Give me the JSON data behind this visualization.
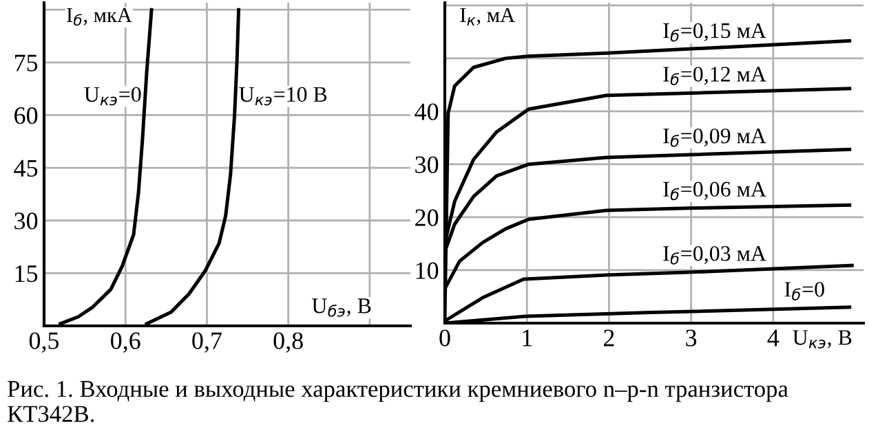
{
  "chart_data": [
    {
      "type": "line",
      "xlabel": "U$_{бэ}$, В",
      "ylabel": "I$_{б}$, мкА",
      "xlim": [
        0.5,
        0.95
      ],
      "ylim": [
        0,
        92
      ],
      "xticks": [
        {
          "value": 0.5,
          "label": "0,5"
        },
        {
          "value": 0.6,
          "label": "0,6"
        },
        {
          "value": 0.7,
          "label": "0,7"
        },
        {
          "value": 0.8,
          "label": "0,8"
        },
        {
          "value": 0.9,
          "label": null
        }
      ],
      "yticks": [
        15,
        30,
        45,
        60,
        75,
        {
          "value": 90,
          "label": null
        }
      ],
      "grid": true,
      "legend": false,
      "series": [
        {
          "name": "U$_{кэ}$=0",
          "color": "#000000",
          "x": [
            0.52,
            0.542,
            0.559,
            0.582,
            0.596,
            0.61,
            0.616,
            0.621,
            0.626,
            0.632
          ],
          "values": [
            0.6,
            2.6,
            5.2,
            10.4,
            17,
            26,
            38,
            53.5,
            72,
            90
          ]
        },
        {
          "name": "U$_{кэ}$=10 В",
          "color": "#000000",
          "x": [
            0.626,
            0.656,
            0.678,
            0.698,
            0.715,
            0.723,
            0.729,
            0.734,
            0.737,
            0.739
          ],
          "values": [
            0.6,
            3.9,
            9.1,
            15.7,
            23.5,
            31.3,
            43,
            60,
            75.7,
            90
          ]
        }
      ],
      "annotations": [
        "Рис. 1. Входные и выходные характеристики кремниевого n–p-n транзистора КТ342В."
      ]
    },
    {
      "type": "line",
      "xlabel": "U$_{кэ}$, В",
      "ylabel": "I$_{к}$, мА",
      "xlim": [
        0,
        5.1
      ],
      "ylim": [
        0,
        60.5
      ],
      "xticks": [
        0,
        1,
        2,
        3,
        4
      ],
      "yticks": [
        10,
        20,
        30,
        40,
        {
          "value": 50,
          "label": null
        },
        {
          "value": 60,
          "label": null
        }
      ],
      "grid": true,
      "legend": false,
      "series": [
        {
          "name": "I$_{б}$=0",
          "color": "#000000",
          "x": [
            0,
            1,
            2.5,
            4.93
          ],
          "values": [
            0,
            1.3,
            2.0,
            3.0
          ]
        },
        {
          "name": "I$_{б}$=0,03 мА",
          "color": "#000000",
          "x": [
            0,
            0.46,
            0.96,
            1.97,
            2.97,
            4.96
          ],
          "values": [
            0.4,
            4.8,
            8.3,
            9.1,
            9.6,
            10.9
          ]
        },
        {
          "name": "I$_{б}$=0,06 мА",
          "color": "#000000",
          "x": [
            0,
            0.18,
            0.46,
            0.74,
            1.02,
            1.97,
            2.97,
            4.93
          ],
          "values": [
            6.5,
            11.7,
            15.2,
            17.8,
            19.6,
            21.3,
            21.7,
            22.3
          ]
        },
        {
          "name": "I$_{б}$=0,09 мА",
          "color": "#000000",
          "x": [
            0,
            0.12,
            0.35,
            0.63,
            1.02,
            1.97,
            4.93
          ],
          "values": [
            13.5,
            18.7,
            23.9,
            27.8,
            30,
            31.3,
            32.8
          ]
        },
        {
          "name": "I$_{б}$=0,12 мА",
          "color": "#000000",
          "x": [
            0,
            0.12,
            0.35,
            0.63,
            1.02,
            1.97,
            4.93
          ],
          "values": [
            15.2,
            23,
            30.9,
            36.1,
            40.4,
            43,
            44.3
          ]
        },
        {
          "name": "I$_{б}$=0,15 мА",
          "color": "#000000",
          "x": [
            0,
            0.04,
            0.12,
            0.35,
            0.74,
            1.02,
            1.97,
            3.53,
            4.93
          ],
          "values": [
            1,
            39.6,
            44.8,
            48.3,
            50,
            50.4,
            51,
            52.2,
            53.3
          ]
        }
      ]
    }
  ]
}
